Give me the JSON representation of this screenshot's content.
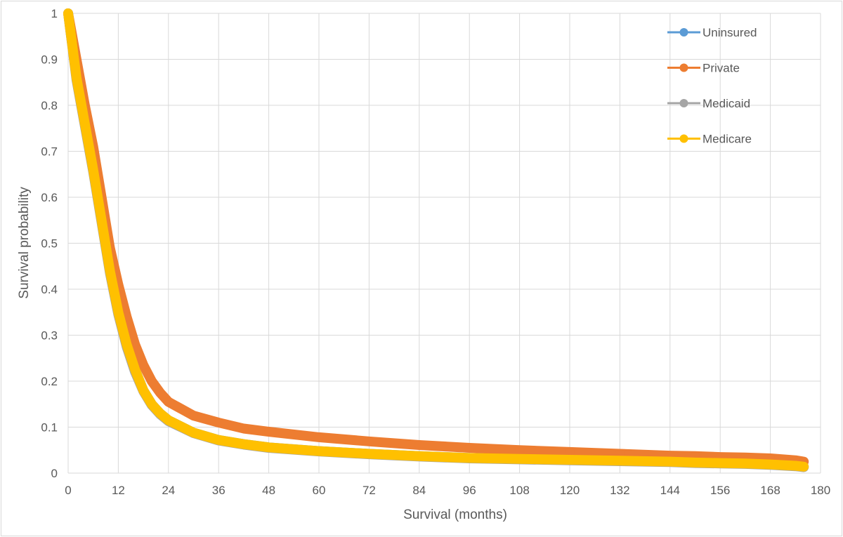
{
  "chart_data": {
    "type": "line",
    "title": "",
    "xlabel": "Survival (months)",
    "ylabel": "Survival probability",
    "xlim": [
      0,
      180
    ],
    "ylim": [
      0,
      1
    ],
    "x_ticks": [
      0,
      12,
      24,
      36,
      48,
      60,
      72,
      84,
      96,
      108,
      120,
      132,
      144,
      156,
      168,
      180
    ],
    "y_ticks": [
      0,
      0.1,
      0.2,
      0.3,
      0.4,
      0.5,
      0.6,
      0.7,
      0.8,
      0.9,
      1
    ],
    "y_tick_labels": [
      "0",
      "0.1",
      "0.2",
      "0.3",
      "0.4",
      "0.5",
      "0.6",
      "0.7",
      "0.8",
      "0.9",
      "1"
    ],
    "grid": true,
    "legend_position": "top-right",
    "series": [
      {
        "name": "Uninsured",
        "color": "#5b9bd5",
        "x": [
          0,
          2,
          4,
          6,
          8,
          10,
          12,
          14,
          16,
          18,
          20,
          22,
          24,
          30,
          36,
          42,
          48,
          60,
          72,
          84,
          96,
          108,
          120,
          132,
          144,
          150,
          156,
          162,
          168,
          174,
          176
        ],
        "y": [
          1.0,
          0.86,
          0.76,
          0.66,
          0.55,
          0.44,
          0.35,
          0.28,
          0.225,
          0.18,
          0.15,
          0.13,
          0.115,
          0.088,
          0.072,
          0.063,
          0.056,
          0.048,
          0.042,
          0.037,
          0.033,
          0.031,
          0.029,
          0.027,
          0.025,
          0.023,
          0.022,
          0.021,
          0.019,
          0.016,
          0.014
        ]
      },
      {
        "name": "Private",
        "color": "#ed7d31",
        "x": [
          0,
          2,
          4,
          6,
          8,
          10,
          12,
          14,
          16,
          18,
          20,
          22,
          24,
          30,
          36,
          42,
          48,
          60,
          72,
          84,
          96,
          108,
          120,
          132,
          144,
          150,
          156,
          162,
          168,
          174,
          176
        ],
        "y": [
          1.0,
          0.9,
          0.8,
          0.71,
          0.6,
          0.49,
          0.41,
          0.34,
          0.28,
          0.235,
          0.2,
          0.175,
          0.155,
          0.125,
          0.11,
          0.097,
          0.09,
          0.078,
          0.069,
          0.061,
          0.055,
          0.05,
          0.046,
          0.042,
          0.038,
          0.037,
          0.035,
          0.034,
          0.032,
          0.028,
          0.025
        ]
      },
      {
        "name": "Medicaid",
        "color": "#a5a5a5",
        "x": [
          0,
          2,
          4,
          6,
          8,
          10,
          12,
          14,
          16,
          18,
          20,
          22,
          24,
          30,
          36,
          42,
          48,
          60,
          72,
          84,
          96,
          108,
          120,
          132,
          144,
          150,
          156,
          162,
          168,
          174,
          176
        ],
        "y": [
          1.0,
          0.855,
          0.755,
          0.655,
          0.545,
          0.435,
          0.345,
          0.275,
          0.22,
          0.178,
          0.148,
          0.128,
          0.113,
          0.087,
          0.071,
          0.062,
          0.055,
          0.047,
          0.041,
          0.036,
          0.032,
          0.03,
          0.028,
          0.026,
          0.024,
          0.022,
          0.021,
          0.02,
          0.018,
          0.015,
          0.013
        ]
      },
      {
        "name": "Medicare",
        "color": "#ffc000",
        "x": [
          0,
          2,
          4,
          6,
          8,
          10,
          12,
          14,
          16,
          18,
          20,
          22,
          24,
          30,
          36,
          42,
          48,
          60,
          72,
          84,
          96,
          108,
          120,
          132,
          144,
          150,
          156,
          162,
          168,
          174,
          176
        ],
        "y": [
          1.0,
          0.86,
          0.76,
          0.66,
          0.55,
          0.44,
          0.35,
          0.28,
          0.225,
          0.18,
          0.15,
          0.13,
          0.115,
          0.088,
          0.072,
          0.063,
          0.056,
          0.048,
          0.042,
          0.037,
          0.033,
          0.031,
          0.029,
          0.027,
          0.025,
          0.023,
          0.022,
          0.021,
          0.019,
          0.016,
          0.014
        ]
      }
    ]
  }
}
